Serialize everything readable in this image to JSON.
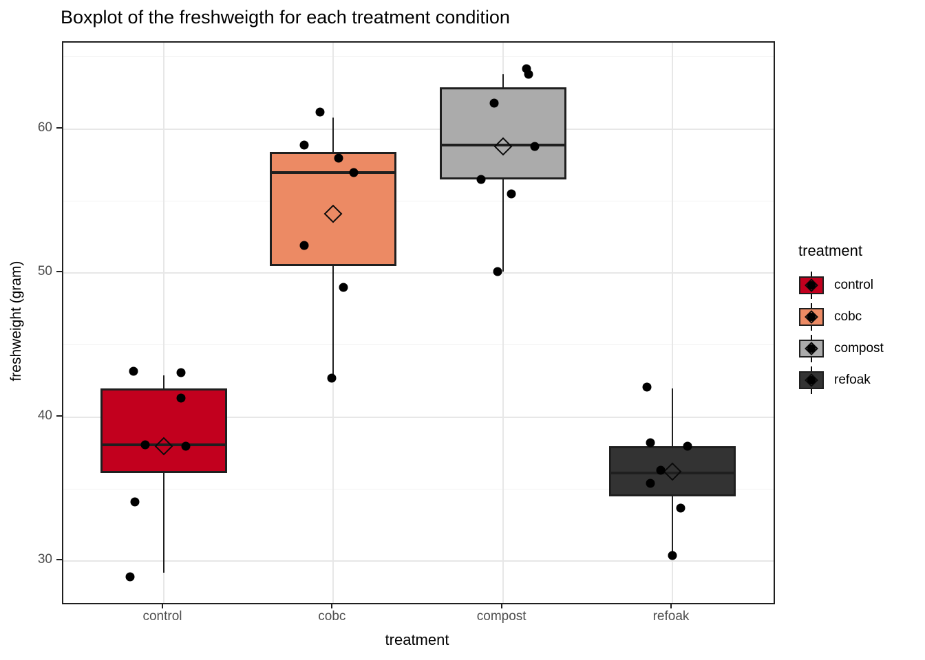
{
  "title": "Boxplot of the freshweigth for each treatment condition",
  "axes": {
    "x_label": "treatment",
    "y_label": "freshweight (gram)",
    "y_ticks": [
      30,
      40,
      50,
      60
    ],
    "y_minor_ticks": [
      35,
      45,
      55,
      65
    ]
  },
  "legend": {
    "title": "treatment",
    "items": [
      {
        "label": "control",
        "fill": "#c2001e"
      },
      {
        "label": "cobc",
        "fill": "#ec8a64"
      },
      {
        "label": "compost",
        "fill": "#ababab"
      },
      {
        "label": "refoak",
        "fill": "#333333"
      }
    ]
  },
  "chart_data": {
    "type": "boxplot",
    "title": "Boxplot of the freshweigth for each treatment condition",
    "xlabel": "treatment",
    "ylabel": "freshweight (gram)",
    "categories": [
      "control",
      "cobc",
      "compost",
      "refoak"
    ],
    "ylim": [
      27.1,
      66.0
    ],
    "grid": true,
    "legend_position": "right",
    "series": [
      {
        "name": "control",
        "fill": "#c2001e",
        "whisker_low": 29.2,
        "q1": 36.1,
        "median": 38.1,
        "q3": 42.0,
        "whisker_high": 42.9,
        "mean": 38.0,
        "points": [
          {
            "dx": -0.18,
            "y": 43.2
          },
          {
            "dx": 0.1,
            "y": 43.1
          },
          {
            "dx": 0.1,
            "y": 41.3
          },
          {
            "dx": -0.11,
            "y": 38.1
          },
          {
            "dx": 0.13,
            "y": 38.0
          },
          {
            "dx": -0.17,
            "y": 34.1
          },
          {
            "dx": -0.2,
            "y": 28.9
          }
        ]
      },
      {
        "name": "cobc",
        "fill": "#ec8a64",
        "whisker_low": 42.7,
        "q1": 50.5,
        "median": 57.0,
        "q3": 58.4,
        "whisker_high": 60.8,
        "mean": 54.1,
        "points": [
          {
            "dx": -0.08,
            "y": 61.2
          },
          {
            "dx": -0.17,
            "y": 58.9
          },
          {
            "dx": 0.03,
            "y": 58.0
          },
          {
            "dx": 0.12,
            "y": 57.0
          },
          {
            "dx": -0.17,
            "y": 51.9
          },
          {
            "dx": 0.06,
            "y": 49.0
          },
          {
            "dx": -0.01,
            "y": 42.7
          }
        ]
      },
      {
        "name": "compost",
        "fill": "#ababab",
        "whisker_low": 50.1,
        "q1": 56.5,
        "median": 58.9,
        "q3": 62.9,
        "whisker_high": 63.8,
        "mean": 58.8,
        "points": [
          {
            "dx": 0.14,
            "y": 64.2
          },
          {
            "dx": 0.15,
            "y": 63.8
          },
          {
            "dx": -0.05,
            "y": 61.8
          },
          {
            "dx": 0.19,
            "y": 58.8
          },
          {
            "dx": -0.13,
            "y": 56.5
          },
          {
            "dx": 0.05,
            "y": 55.5
          },
          {
            "dx": -0.03,
            "y": 50.1
          }
        ]
      },
      {
        "name": "refoak",
        "fill": "#333333",
        "whisker_low": 30.3,
        "q1": 34.5,
        "median": 36.1,
        "q3": 38.0,
        "whisker_high": 42.0,
        "mean": 36.2,
        "points": [
          {
            "dx": -0.15,
            "y": 42.1
          },
          {
            "dx": -0.13,
            "y": 38.2
          },
          {
            "dx": 0.09,
            "y": 38.0
          },
          {
            "dx": -0.07,
            "y": 36.3
          },
          {
            "dx": -0.13,
            "y": 35.4
          },
          {
            "dx": 0.05,
            "y": 33.7
          },
          {
            "dx": 0.0,
            "y": 30.4
          }
        ]
      }
    ]
  }
}
